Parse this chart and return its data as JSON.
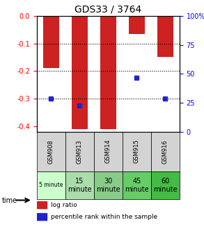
{
  "title": "GDS33 / 3764",
  "samples": [
    "GSM908",
    "GSM913",
    "GSM914",
    "GSM915",
    "GSM916"
  ],
  "time_labels": [
    "5 minute",
    "15\nminute",
    "30\nminute",
    "45\nminute",
    "60\nminute"
  ],
  "time_colors": [
    "#ccffcc",
    "#99ff99",
    "#66cc66",
    "#33cc33",
    "#00cc00"
  ],
  "log_ratios": [
    -0.19,
    -0.41,
    -0.41,
    -0.065,
    -0.15
  ],
  "percentile_ranks": [
    25,
    18,
    null,
    47,
    25
  ],
  "percentile_y_values": [
    -0.3,
    -0.325,
    null,
    -0.225,
    -0.3
  ],
  "ylim_left": [
    -0.42,
    0.0
  ],
  "ylim_right": [
    0,
    100
  ],
  "yticks_left": [
    0.0,
    -0.1,
    -0.2,
    -0.3,
    -0.4
  ],
  "yticks_right": [
    100,
    75,
    50,
    25,
    0
  ],
  "bar_color": "#cc2222",
  "percentile_color": "#2222cc",
  "grid_color": "#000000",
  "bg_color": "#ffffff",
  "table_gray": "#d3d3d3",
  "time_colors_list": [
    "#ccffcc",
    "#aaddaa",
    "#88cc88",
    "#55cc55",
    "#22bb22"
  ]
}
